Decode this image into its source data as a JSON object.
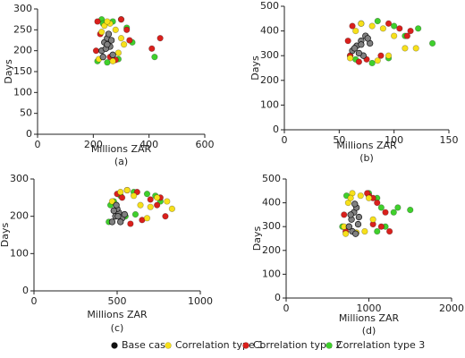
{
  "chart_data": [
    {
      "type": "scatter",
      "xlabel": "Millions ZAR",
      "ylabel": "Days",
      "caption": "(a)",
      "xlim": [
        0,
        600
      ],
      "ylim": [
        0,
        300
      ],
      "xticks": [
        0,
        200,
        400,
        600
      ],
      "yticks": [
        0,
        50,
        100,
        150,
        200,
        250,
        300
      ],
      "series": [
        {
          "x": [
            230,
            240,
            250,
            260,
            270,
            235,
            255,
            245,
            265,
            250
          ],
          "values": [
            200,
            220,
            230,
            210,
            190,
            185,
            240,
            205,
            225,
            215
          ]
        },
        {
          "x": [
            220,
            240,
            260,
            280,
            300,
            290,
            230,
            270,
            310,
            250
          ],
          "values": [
            180,
            260,
            265,
            250,
            230,
            195,
            245,
            175,
            215,
            270
          ]
        },
        {
          "x": [
            210,
            215,
            300,
            320,
            330,
            260,
            440,
            410,
            225,
            280
          ],
          "values": [
            200,
            270,
            275,
            250,
            225,
            185,
            230,
            205,
            240,
            178
          ]
        },
        {
          "x": [
            215,
            230,
            270,
            300,
            320,
            340,
            290,
            250,
            420,
            235
          ],
          "values": [
            175,
            275,
            270,
            275,
            255,
            220,
            180,
            172,
            185,
            265
          ]
        }
      ]
    },
    {
      "type": "scatter",
      "xlabel": "Millions ZAR",
      "ylabel": "Days",
      "caption": "(b)",
      "xlim": [
        0,
        150
      ],
      "ylim": [
        0,
        500
      ],
      "xticks": [
        0,
        50,
        100,
        150
      ],
      "yticks": [
        0,
        100,
        200,
        300,
        400,
        500
      ],
      "series": [
        {
          "x": [
            62,
            66,
            70,
            74,
            78,
            72,
            68,
            64,
            76,
            70
          ],
          "values": [
            320,
            340,
            360,
            380,
            350,
            300,
            310,
            330,
            370,
            345
          ]
        },
        {
          "x": [
            60,
            65,
            80,
            90,
            100,
            110,
            95,
            85,
            120,
            70
          ],
          "values": [
            290,
            400,
            420,
            410,
            380,
            330,
            300,
            280,
            330,
            430
          ]
        },
        {
          "x": [
            58,
            62,
            95,
            105,
            112,
            75,
            68,
            88,
            115,
            60
          ],
          "values": [
            360,
            420,
            430,
            410,
            380,
            285,
            275,
            300,
            400,
            300
          ]
        },
        {
          "x": [
            60,
            70,
            85,
            100,
            110,
            122,
            135,
            95,
            65,
            80
          ],
          "values": [
            300,
            430,
            440,
            420,
            380,
            410,
            350,
            290,
            285,
            270
          ]
        }
      ]
    },
    {
      "type": "scatter",
      "xlabel": "Millions ZAR",
      "ylabel": "Days",
      "caption": "(c)",
      "xlim": [
        0,
        1000
      ],
      "ylim": [
        0,
        300
      ],
      "xticks": [
        0,
        500,
        1000
      ],
      "yticks": [
        0,
        100,
        200,
        300
      ],
      "series": [
        {
          "x": [
            470,
            490,
            510,
            530,
            500,
            480,
            520,
            495,
            545,
            505
          ],
          "values": [
            185,
            200,
            210,
            195,
            220,
            215,
            185,
            230,
            205,
            200
          ]
        },
        {
          "x": [
            470,
            520,
            560,
            600,
            640,
            700,
            740,
            800,
            830,
            680
          ],
          "values": [
            240,
            265,
            270,
            255,
            230,
            225,
            250,
            240,
            220,
            195
          ]
        },
        {
          "x": [
            500,
            560,
            620,
            700,
            760,
            790,
            650,
            580,
            740,
            530
          ],
          "values": [
            260,
            270,
            265,
            245,
            250,
            200,
            190,
            180,
            230,
            250
          ]
        },
        {
          "x": [
            450,
            480,
            520,
            600,
            680,
            730,
            760,
            610,
            550,
            460
          ],
          "values": [
            185,
            240,
            255,
            265,
            260,
            255,
            240,
            205,
            200,
            230
          ]
        }
      ]
    },
    {
      "type": "scatter",
      "xlabel": "Millions ZAR",
      "ylabel": "Days",
      "caption": "(d)",
      "xlim": [
        0,
        2000
      ],
      "ylim": [
        0,
        500
      ],
      "xticks": [
        0,
        1000,
        2000
      ],
      "yticks": [
        0,
        100,
        200,
        300,
        400,
        500
      ],
      "series": [
        {
          "x": [
            760,
            790,
            820,
            850,
            880,
            800,
            840,
            870,
            780,
            830
          ],
          "values": [
            300,
            330,
            360,
            380,
            340,
            280,
            270,
            310,
            350,
            395
          ]
        },
        {
          "x": [
            700,
            750,
            800,
            900,
            1000,
            1050,
            950,
            720,
            850,
            780
          ],
          "values": [
            300,
            400,
            440,
            430,
            420,
            330,
            280,
            270,
            275,
            420
          ]
        },
        {
          "x": [
            700,
            1000,
            1050,
            1100,
            1150,
            1200,
            1250,
            1050,
            980,
            720
          ],
          "values": [
            350,
            430,
            420,
            400,
            300,
            360,
            280,
            310,
            440,
            280
          ]
        },
        {
          "x": [
            680,
            1000,
            1100,
            1150,
            1200,
            1300,
            1350,
            1500,
            1100,
            730
          ],
          "values": [
            300,
            440,
            420,
            380,
            300,
            360,
            380,
            370,
            280,
            430
          ]
        }
      ]
    }
  ],
  "legend": [
    {
      "name": "Base case",
      "color": "#111111"
    },
    {
      "name": "Correlation type 1",
      "color": "#f7e01a"
    },
    {
      "name": "Correlation type 2",
      "color": "#d9201c"
    },
    {
      "name": "Correlation type 3",
      "color": "#3fd02c"
    }
  ]
}
